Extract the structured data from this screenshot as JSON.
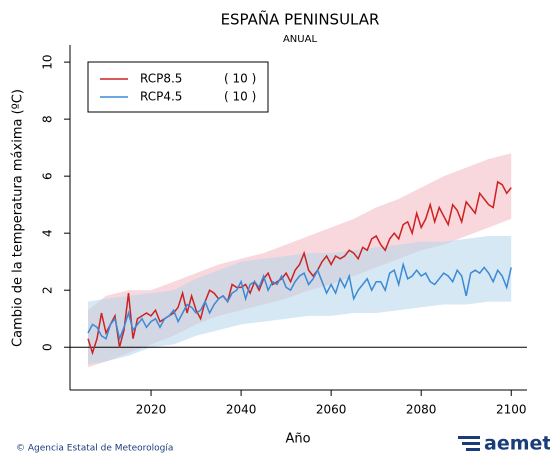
{
  "chart_data": {
    "type": "line",
    "title": "ESPAÑA PENINSULAR",
    "subtitle": "ANUAL",
    "y_label": "Cambio de la temperatura máxima (ºC)",
    "x_label": "Año",
    "credit": "© Agencia Estatal de Meteorología",
    "logo": "aemet",
    "x": [
      2006,
      2007,
      2008,
      2009,
      2010,
      2011,
      2012,
      2013,
      2014,
      2015,
      2016,
      2017,
      2018,
      2019,
      2020,
      2021,
      2022,
      2023,
      2024,
      2025,
      2026,
      2027,
      2028,
      2029,
      2030,
      2031,
      2032,
      2033,
      2034,
      2035,
      2036,
      2037,
      2038,
      2039,
      2040,
      2041,
      2042,
      2043,
      2044,
      2045,
      2046,
      2047,
      2048,
      2049,
      2050,
      2051,
      2052,
      2053,
      2054,
      2055,
      2056,
      2057,
      2058,
      2059,
      2060,
      2061,
      2062,
      2063,
      2064,
      2065,
      2066,
      2067,
      2068,
      2069,
      2070,
      2071,
      2072,
      2073,
      2074,
      2075,
      2076,
      2077,
      2078,
      2079,
      2080,
      2081,
      2082,
      2083,
      2084,
      2085,
      2086,
      2087,
      2088,
      2089,
      2090,
      2091,
      2092,
      2093,
      2094,
      2095,
      2096,
      2097,
      2098,
      2099,
      2100
    ],
    "series": [
      {
        "name": "RCP8.5",
        "note": "( 10 )",
        "color": "#cc2222",
        "band_color": "#f2b8c0",
        "values": [
          0.3,
          -0.2,
          0.3,
          1.2,
          0.5,
          0.8,
          1.1,
          0.0,
          0.6,
          1.9,
          0.3,
          1.0,
          1.1,
          1.2,
          1.1,
          1.3,
          0.9,
          1.0,
          1.1,
          1.2,
          1.4,
          1.9,
          1.2,
          1.8,
          1.3,
          1.0,
          1.6,
          2.0,
          1.9,
          1.7,
          1.8,
          1.6,
          2.2,
          2.1,
          2.1,
          2.2,
          1.9,
          2.3,
          2.0,
          2.4,
          2.6,
          2.2,
          2.3,
          2.4,
          2.6,
          2.3,
          2.7,
          2.9,
          3.3,
          2.7,
          2.5,
          2.7,
          3.0,
          3.2,
          2.9,
          3.2,
          3.1,
          3.2,
          3.4,
          3.3,
          3.1,
          3.5,
          3.4,
          3.8,
          3.9,
          3.6,
          3.4,
          3.8,
          4.0,
          3.8,
          4.3,
          4.4,
          4.0,
          4.7,
          4.2,
          4.5,
          5.0,
          4.4,
          4.9,
          4.6,
          4.3,
          5.0,
          4.8,
          4.4,
          5.1,
          4.9,
          4.7,
          5.4,
          5.2,
          5.0,
          4.9,
          5.8,
          5.7,
          5.4,
          5.6
        ],
        "band": {
          "x": [
            2006,
            2010,
            2015,
            2020,
            2025,
            2030,
            2035,
            2040,
            2045,
            2050,
            2055,
            2060,
            2065,
            2070,
            2075,
            2080,
            2085,
            2090,
            2095,
            2100
          ],
          "upper": [
            1.3,
            1.8,
            2.0,
            2.0,
            2.3,
            2.6,
            2.9,
            3.1,
            3.3,
            3.6,
            3.9,
            4.2,
            4.5,
            4.9,
            5.2,
            5.6,
            6.0,
            6.3,
            6.6,
            6.8
          ],
          "lower": [
            -0.7,
            -0.5,
            -0.2,
            0.1,
            0.4,
            0.8,
            1.1,
            1.3,
            1.5,
            1.7,
            2.0,
            2.2,
            2.5,
            2.8,
            3.1,
            3.4,
            3.6,
            3.9,
            4.2,
            4.5
          ]
        }
      },
      {
        "name": "RCP4.5",
        "note": "( 10 )",
        "color": "#3a8ad6",
        "band_color": "#b4d6ea",
        "values": [
          0.5,
          0.8,
          0.7,
          0.4,
          0.3,
          0.8,
          1.0,
          0.3,
          0.7,
          1.2,
          0.6,
          0.8,
          1.0,
          0.7,
          0.9,
          1.0,
          0.7,
          1.0,
          1.1,
          1.3,
          0.9,
          1.2,
          1.5,
          1.4,
          1.2,
          1.3,
          1.6,
          1.2,
          1.5,
          1.7,
          1.8,
          1.6,
          1.9,
          2.0,
          2.3,
          1.7,
          2.2,
          2.3,
          2.1,
          2.5,
          2.0,
          2.3,
          2.2,
          2.5,
          2.1,
          2.0,
          2.3,
          2.5,
          2.6,
          2.2,
          2.4,
          2.7,
          2.3,
          1.9,
          2.2,
          1.9,
          2.4,
          2.1,
          2.5,
          1.7,
          2.0,
          2.2,
          2.4,
          2.0,
          2.3,
          2.3,
          2.0,
          2.6,
          2.7,
          2.2,
          2.9,
          2.4,
          2.5,
          2.7,
          2.5,
          2.6,
          2.3,
          2.2,
          2.4,
          2.6,
          2.5,
          2.3,
          2.7,
          2.5,
          1.8,
          2.6,
          2.7,
          2.6,
          2.8,
          2.6,
          2.3,
          2.7,
          2.5,
          2.1,
          2.8
        ],
        "band": {
          "x": [
            2006,
            2010,
            2015,
            2020,
            2025,
            2030,
            2035,
            2040,
            2045,
            2050,
            2055,
            2060,
            2065,
            2070,
            2075,
            2080,
            2085,
            2090,
            2095,
            2100
          ],
          "upper": [
            1.6,
            1.7,
            1.8,
            1.9,
            2.0,
            2.4,
            2.7,
            3.0,
            3.1,
            3.2,
            3.3,
            3.3,
            3.4,
            3.5,
            3.6,
            3.7,
            3.7,
            3.8,
            3.9,
            3.9
          ],
          "lower": [
            -0.6,
            -0.5,
            -0.3,
            0.0,
            0.1,
            0.4,
            0.6,
            0.8,
            0.9,
            1.0,
            1.1,
            1.1,
            1.2,
            1.2,
            1.3,
            1.4,
            1.5,
            1.5,
            1.6,
            1.6
          ]
        }
      }
    ],
    "xlim": [
      2002,
      2103.5
    ],
    "ylim": [
      -1.5,
      10.6
    ],
    "xticks": [
      2020,
      2040,
      2060,
      2080,
      2100
    ],
    "yticks": [
      0,
      2,
      4,
      6,
      8,
      10
    ],
    "reference_line": 0,
    "legend": "top-left"
  }
}
